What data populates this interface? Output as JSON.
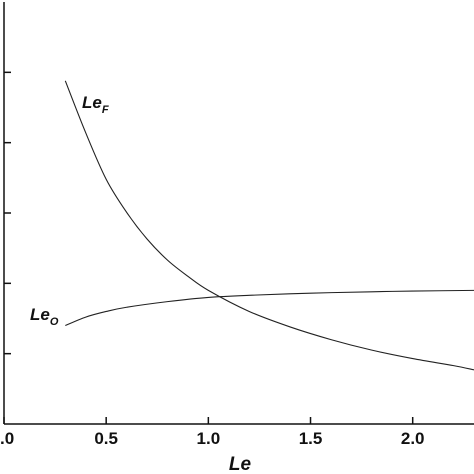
{
  "chart_data": {
    "type": "line",
    "xlabel": "Le",
    "ylabel": "",
    "xlim": [
      0.0,
      2.3
    ],
    "ylim": [
      0,
      6
    ],
    "x_ticks": [
      0.0,
      0.5,
      1.0,
      1.5,
      2.0
    ],
    "x_tick_labels": [
      ".0",
      "0.5",
      "1.0",
      "1.5",
      "2.0"
    ],
    "y_ticks": [
      1,
      2,
      3,
      4,
      5
    ],
    "y_tick_labels": [],
    "grid": false,
    "legend": "none",
    "series": [
      {
        "name": "Le_F",
        "label_main": "Le",
        "label_sub": "F",
        "x": [
          0.3,
          0.4,
          0.5,
          0.6,
          0.7,
          0.8,
          0.9,
          1.0,
          1.2,
          1.4,
          1.6,
          1.8,
          2.0,
          2.2,
          2.3
        ],
        "y": [
          4.88,
          4.14,
          3.48,
          3.01,
          2.63,
          2.33,
          2.1,
          1.9,
          1.6,
          1.38,
          1.2,
          1.05,
          0.93,
          0.83,
          0.77
        ]
      },
      {
        "name": "Le_O",
        "label_main": "Le",
        "label_sub": "O",
        "x": [
          0.3,
          0.4,
          0.5,
          0.6,
          0.8,
          1.0,
          1.2,
          1.5,
          1.8,
          2.0,
          2.3
        ],
        "y": [
          1.4,
          1.52,
          1.6,
          1.66,
          1.74,
          1.8,
          1.83,
          1.86,
          1.88,
          1.89,
          1.9
        ]
      }
    ]
  }
}
